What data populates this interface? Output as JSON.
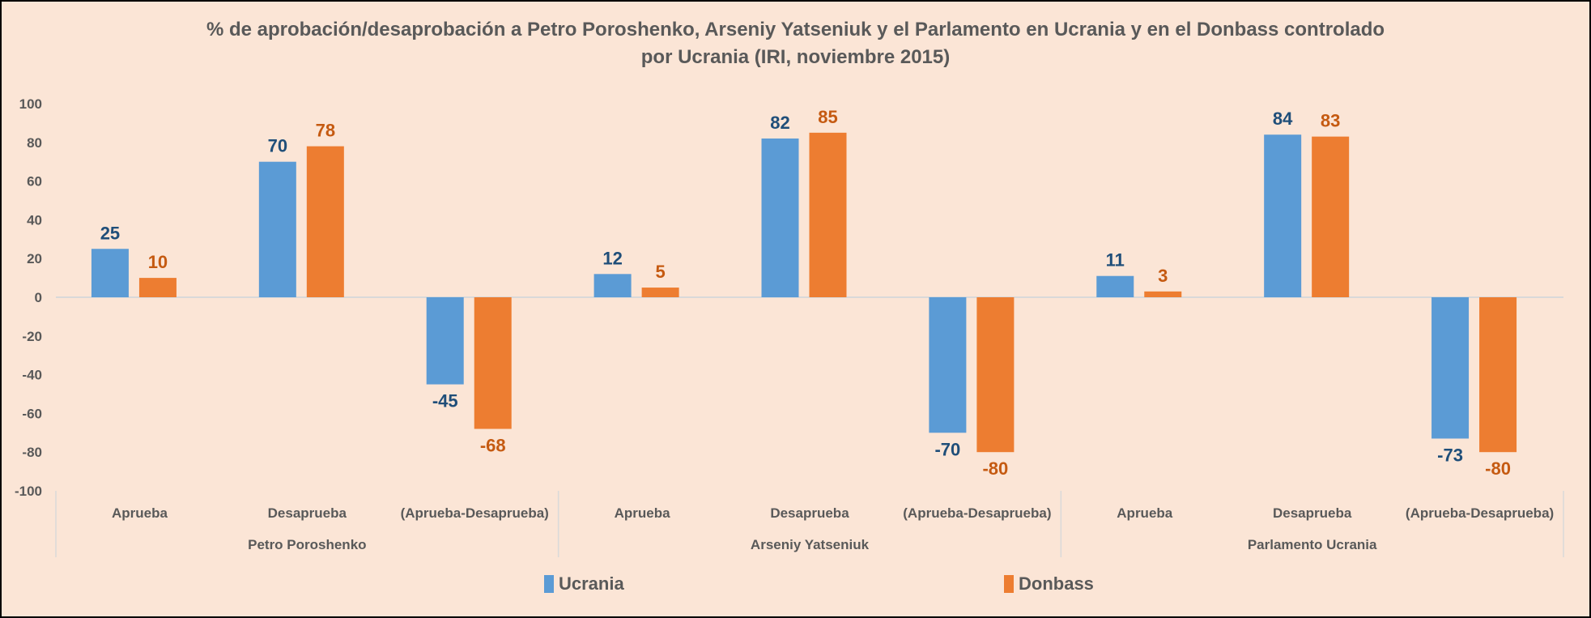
{
  "chart_data": {
    "type": "bar",
    "title": "% de aprobación/desaprobación a Petro Poroshenko, Arseniy Yatseniuk y el Parlamento en Ucrania y en el Donbass controlado por Ucrania (IRI, noviembre 2015)",
    "title_lines": [
      "% de aprobación/desaprobación a Petro Poroshenko, Arseniy Yatseniuk y el Parlamento en Ucrania y en el Donbass controlado",
      "por Ucrania (IRI, noviembre 2015)"
    ],
    "groups": [
      "Petro Poroshenko",
      "Arseniy Yatseniuk",
      "Parlamento Ucrania"
    ],
    "categories": [
      "Aprueba",
      "Desaprueba",
      "(Aprueba-Desaprueba)",
      "Aprueba",
      "Desaprueba",
      "(Aprueba-Desaprueba)",
      "Aprueba",
      "Desaprueba",
      "(Aprueba-Desaprueba)"
    ],
    "series": [
      {
        "name": "Ucrania",
        "color": "#5B9BD5",
        "label_color": "#1F4E79",
        "values": [
          25,
          70,
          -45,
          12,
          82,
          -70,
          11,
          84,
          -73
        ]
      },
      {
        "name": "Donbass",
        "color": "#ED7D31",
        "label_color": "#C55A11",
        "values": [
          10,
          78,
          -68,
          5,
          85,
          -80,
          3,
          83,
          -80
        ]
      }
    ],
    "ylim": [
      -100,
      100
    ],
    "yticks": [
      100,
      80,
      60,
      40,
      20,
      0,
      -20,
      -40,
      -60,
      -80,
      -100
    ],
    "xlabel": "",
    "ylabel": "",
    "grid": false,
    "legend_position": "bottom"
  }
}
